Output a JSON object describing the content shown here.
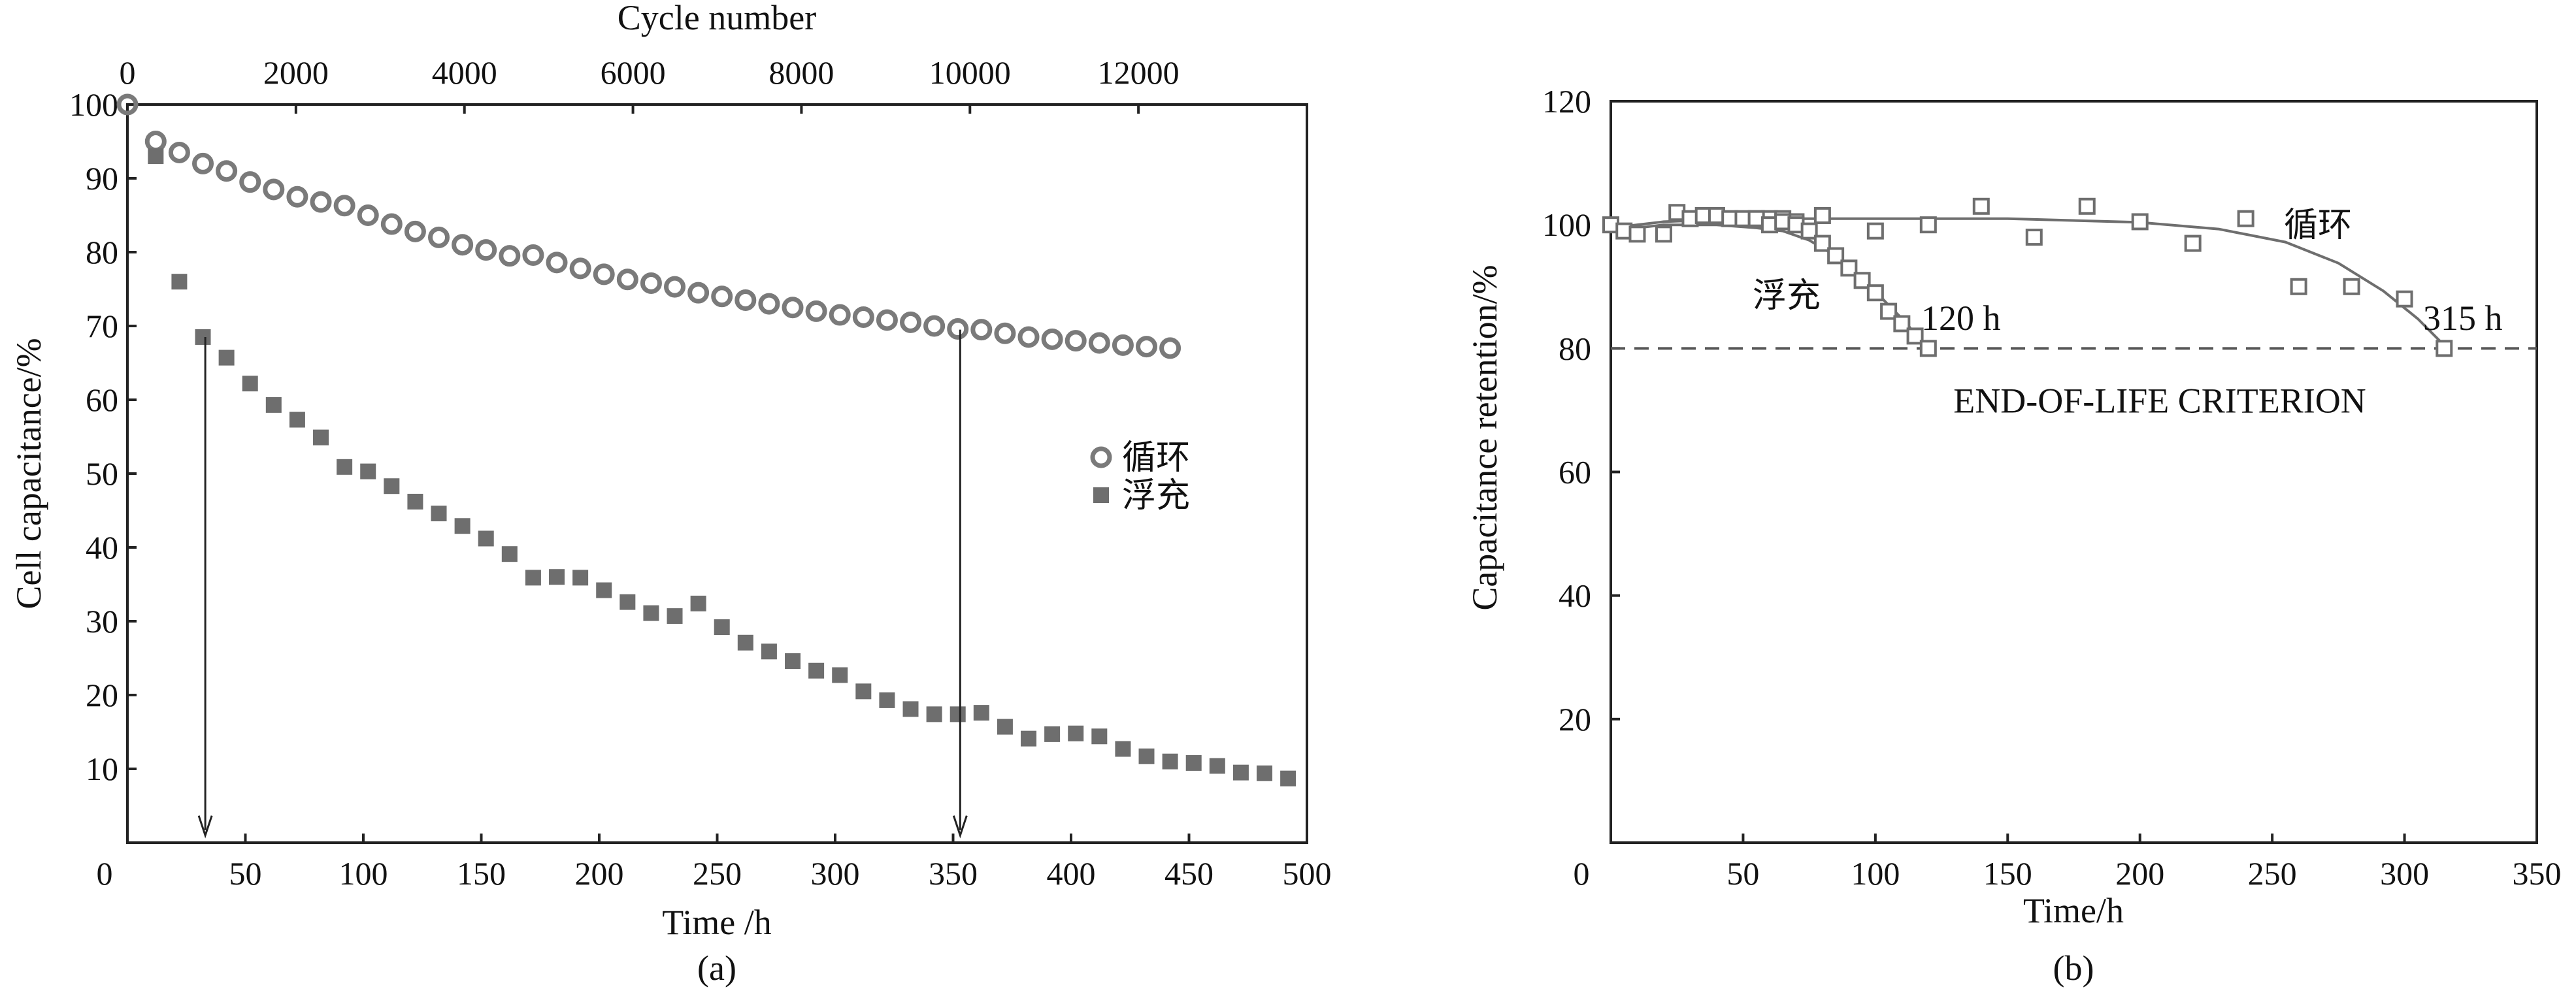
{
  "chart_data": [
    {
      "type": "scatter",
      "panel": "(a)",
      "xlabel": "Time /h",
      "ylabel": "Cell capacitance/%",
      "top_xlabel": "Cycle number",
      "xlim": [
        0,
        500
      ],
      "ylim": [
        0,
        100
      ],
      "xticks": [
        0,
        50,
        100,
        150,
        200,
        250,
        300,
        350,
        400,
        450,
        500
      ],
      "yticks": [
        10,
        20,
        30,
        40,
        50,
        60,
        70,
        80,
        90,
        100
      ],
      "top_xlim": [
        0,
        14000
      ],
      "top_xticks": [
        0,
        2000,
        4000,
        6000,
        8000,
        10000,
        12000
      ],
      "legend_position": "right-middle",
      "series": [
        {
          "name": "循环",
          "marker": "circle-open",
          "x": [
            0,
            12,
            22,
            32,
            42,
            52,
            62,
            72,
            82,
            92,
            102,
            112,
            122,
            132,
            142,
            152,
            162,
            172,
            182,
            192,
            202,
            212,
            222,
            232,
            242,
            252,
            262,
            272,
            282,
            292,
            302,
            312,
            322,
            332,
            342,
            352,
            362,
            372,
            382,
            392,
            402,
            412,
            422,
            432,
            442
          ],
          "y": [
            100,
            95.0,
            93.5,
            92.0,
            91.0,
            89.5,
            88.5,
            87.5,
            86.8,
            86.3,
            85.0,
            83.8,
            82.8,
            82.0,
            81.0,
            80.3,
            79.5,
            79.6,
            78.6,
            77.8,
            77.0,
            76.3,
            75.8,
            75.3,
            74.5,
            74.0,
            73.5,
            73.0,
            72.5,
            72.0,
            71.5,
            71.2,
            70.8,
            70.5,
            70.0,
            69.6,
            69.5,
            69.0,
            68.5,
            68.2,
            68.0,
            67.7,
            67.4,
            67.2,
            67.0
          ]
        },
        {
          "name": "浮充",
          "marker": "square-filled",
          "x": [
            12,
            22,
            32,
            42,
            52,
            62,
            72,
            82,
            92,
            102,
            112,
            122,
            132,
            142,
            152,
            162,
            172,
            182,
            192,
            202,
            212,
            222,
            232,
            242,
            252,
            262,
            272,
            282,
            292,
            302,
            312,
            322,
            332,
            342,
            352,
            362,
            372,
            382,
            392,
            402,
            412,
            422,
            432,
            442,
            452,
            462,
            472,
            482,
            492
          ],
          "y": [
            93.0,
            76.0,
            68.5,
            65.7,
            62.2,
            59.3,
            57.3,
            54.9,
            50.9,
            50.3,
            48.3,
            46.2,
            44.6,
            42.9,
            41.2,
            39.1,
            35.9,
            36.0,
            35.9,
            34.2,
            32.6,
            31.1,
            30.7,
            32.4,
            29.2,
            27.1,
            25.9,
            24.6,
            23.3,
            22.7,
            20.5,
            19.3,
            18.1,
            17.4,
            17.4,
            17.6,
            15.7,
            14.1,
            14.7,
            14.8,
            14.4,
            12.7,
            11.7,
            11.0,
            10.8,
            10.4,
            9.5,
            9.4,
            8.7
          ]
        }
      ],
      "annotations": [
        {
          "type": "arrow",
          "x": 33,
          "y_from": 68.5,
          "y_to": 1
        },
        {
          "type": "arrow",
          "x": 353,
          "y_from": 69.5,
          "y_to": 1
        }
      ]
    },
    {
      "type": "scatter",
      "panel": "(b)",
      "xlabel": "Time/h",
      "ylabel": "Capacitance retention/%",
      "xlim": [
        0,
        350
      ],
      "ylim": [
        0,
        120
      ],
      "xticks": [
        0,
        50,
        100,
        150,
        200,
        250,
        300,
        350
      ],
      "yticks": [
        20,
        40,
        60,
        80,
        100,
        120
      ],
      "series": [
        {
          "name": "循环",
          "marker": "square-open",
          "x": [
            0,
            5,
            10,
            20,
            25,
            30,
            35,
            40,
            45,
            50,
            55,
            60,
            65,
            70,
            80,
            100,
            120,
            140,
            160,
            180,
            200,
            220,
            240,
            260,
            280,
            300,
            315
          ],
          "y": [
            100,
            99,
            98.5,
            98.5,
            102,
            101,
            101.5,
            101.5,
            101,
            101,
            101,
            101,
            101,
            100.5,
            101.5,
            99,
            100,
            103,
            98,
            103,
            100.5,
            97,
            101,
            90,
            90,
            88,
            80
          ]
        },
        {
          "name": "浮充",
          "marker": "square-open",
          "x": [
            55,
            60,
            65,
            70,
            75,
            80,
            85,
            90,
            95,
            100,
            105,
            110,
            115,
            120
          ],
          "y": [
            101,
            100,
            100.5,
            100,
            99,
            97,
            95,
            93,
            91,
            89,
            86,
            84,
            82,
            80
          ]
        }
      ],
      "fit_curves": [
        {
          "name": "循环",
          "x": [
            0,
            20,
            50,
            100,
            150,
            200,
            230,
            255,
            275,
            292,
            305,
            315
          ],
          "y": [
            99.5,
            100.5,
            101,
            101,
            101,
            100.4,
            99.3,
            97.2,
            93.8,
            89.3,
            84.8,
            80.5
          ]
        },
        {
          "name": "浮充",
          "x": [
            0,
            20,
            40,
            55,
            65,
            75,
            85,
            95,
            105,
            112,
            117
          ],
          "y": [
            99,
            100,
            100,
            99.5,
            99,
            97.5,
            95,
            91.5,
            87,
            84,
            81
          ]
        }
      ],
      "reference_line": {
        "y": 80,
        "label": "END-OF-LIFE CRITERION",
        "style": "dashed"
      },
      "annotations": [
        {
          "text": "120 h",
          "x": 120,
          "y": 80
        },
        {
          "text": "315 h",
          "x": 315,
          "y": 80
        }
      ]
    }
  ]
}
